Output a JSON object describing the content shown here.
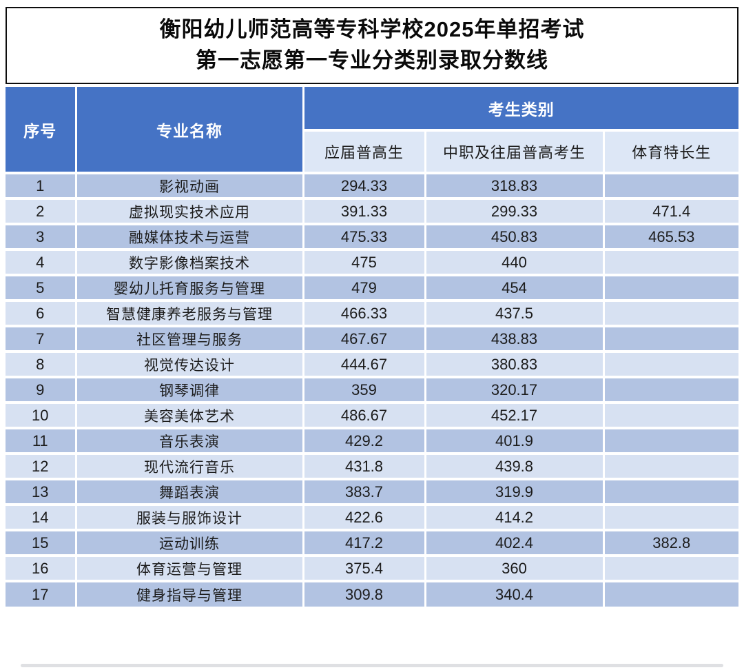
{
  "title": {
    "line1": "衡阳幼儿师范高等专科学校2025年单招考试",
    "line2": "第一志愿第一专业分类别录取分数线"
  },
  "table": {
    "headers": {
      "seq": "序号",
      "major": "专业名称",
      "category_group": "考生类别",
      "sub": [
        "应届普高生",
        "中职及往届普高考生",
        "体育特长生"
      ]
    },
    "rows": [
      {
        "seq": "1",
        "major": "影视动画",
        "fresh": "294.33",
        "vocational": "318.83",
        "sports": ""
      },
      {
        "seq": "2",
        "major": "虚拟现实技术应用",
        "fresh": "391.33",
        "vocational": "299.33",
        "sports": "471.4"
      },
      {
        "seq": "3",
        "major": "融媒体技术与运营",
        "fresh": "475.33",
        "vocational": "450.83",
        "sports": "465.53"
      },
      {
        "seq": "4",
        "major": "数字影像档案技术",
        "fresh": "475",
        "vocational": "440",
        "sports": ""
      },
      {
        "seq": "5",
        "major": "婴幼儿托育服务与管理",
        "fresh": "479",
        "vocational": "454",
        "sports": ""
      },
      {
        "seq": "6",
        "major": "智慧健康养老服务与管理",
        "fresh": "466.33",
        "vocational": "437.5",
        "sports": ""
      },
      {
        "seq": "7",
        "major": "社区管理与服务",
        "fresh": "467.67",
        "vocational": "438.83",
        "sports": ""
      },
      {
        "seq": "8",
        "major": "视觉传达设计",
        "fresh": "444.67",
        "vocational": "380.83",
        "sports": ""
      },
      {
        "seq": "9",
        "major": "钢琴调律",
        "fresh": "359",
        "vocational": "320.17",
        "sports": ""
      },
      {
        "seq": "10",
        "major": "美容美体艺术",
        "fresh": "486.67",
        "vocational": "452.17",
        "sports": ""
      },
      {
        "seq": "11",
        "major": "音乐表演",
        "fresh": "429.2",
        "vocational": "401.9",
        "sports": ""
      },
      {
        "seq": "12",
        "major": "现代流行音乐",
        "fresh": "431.8",
        "vocational": "439.8",
        "sports": ""
      },
      {
        "seq": "13",
        "major": "舞蹈表演",
        "fresh": "383.7",
        "vocational": "319.9",
        "sports": ""
      },
      {
        "seq": "14",
        "major": "服装与服饰设计",
        "fresh": "422.6",
        "vocational": "414.2",
        "sports": ""
      },
      {
        "seq": "15",
        "major": "运动训练",
        "fresh": "417.2",
        "vocational": "402.4",
        "sports": "382.8"
      },
      {
        "seq": "16",
        "major": "体育运营与管理",
        "fresh": "375.4",
        "vocational": "360",
        "sports": ""
      },
      {
        "seq": "17",
        "major": "健身指导与管理",
        "fresh": "309.8",
        "vocational": "340.4",
        "sports": ""
      }
    ]
  },
  "colors": {
    "header_blue": "#4573c5",
    "subheader_bg": "#dde7f6",
    "row_odd": "#b2c3e2",
    "row_even": "#d7e1f2",
    "grid_line": "#ffffff",
    "title_text": "#0a0a0a"
  }
}
